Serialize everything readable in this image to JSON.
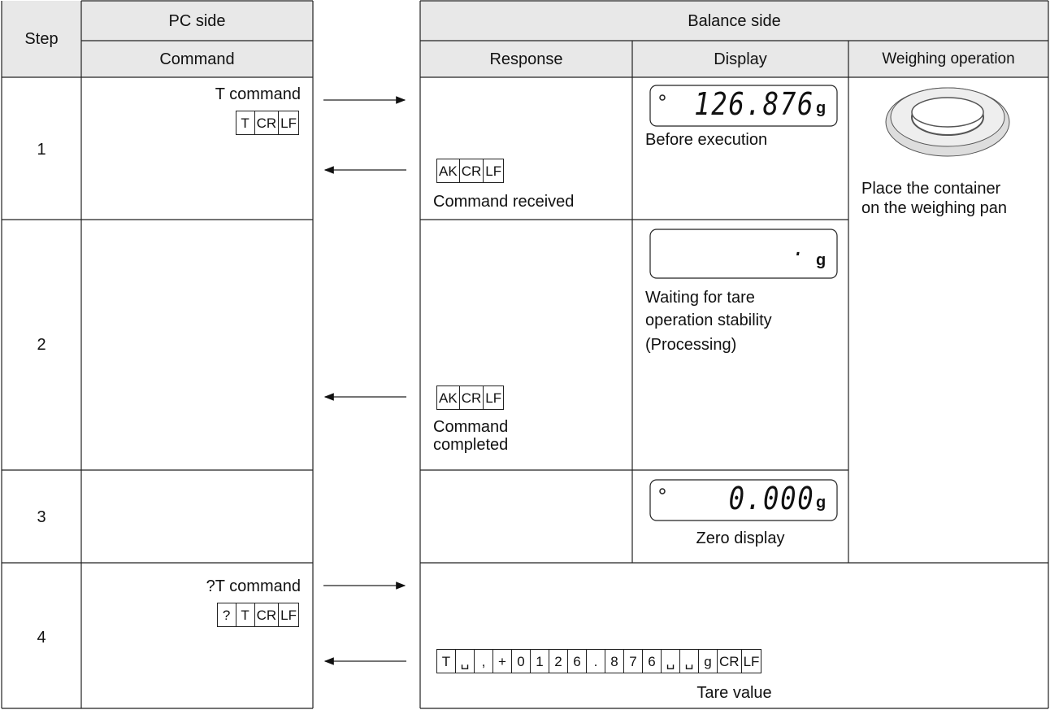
{
  "header": {
    "step": "Step",
    "pc_side": "PC side",
    "command": "Command",
    "balance_side": "Balance side",
    "response": "Response",
    "display": "Display",
    "weighing_operation": "Weighing operation"
  },
  "rows": [
    {
      "step": "1",
      "command": "T command",
      "command_code": [
        "T",
        "CR",
        "LF"
      ],
      "response_code": [
        "AK",
        "CR",
        "LF"
      ],
      "response": "Command received",
      "display": {
        "reading": "126.876",
        "unit": "g"
      },
      "display_caption": [
        "Before execution"
      ]
    },
    {
      "step": "2",
      "response_code": [
        "AK",
        "CR",
        "LF"
      ],
      "response": "Command completed",
      "display": {
        "reading": ".",
        "unit": "g"
      },
      "display_caption": [
        "Waiting for tare operation stability",
        "(Processing)"
      ]
    },
    {
      "step": "3",
      "display": {
        "reading": "0.000",
        "unit": "g"
      },
      "display_caption": [
        "Zero display"
      ]
    },
    {
      "step": "4",
      "command": "?T command",
      "command_code": [
        "?",
        "T",
        "CR",
        "LF"
      ],
      "response_code": [
        "T",
        "␣",
        ",",
        "+",
        "0",
        "1",
        "2",
        "6",
        ".",
        "8",
        "7",
        "6",
        "␣",
        "␣",
        "g",
        "CR",
        "LF"
      ],
      "response": "Tare value"
    }
  ],
  "weighing_operation": "Place the container on the weighing pan"
}
